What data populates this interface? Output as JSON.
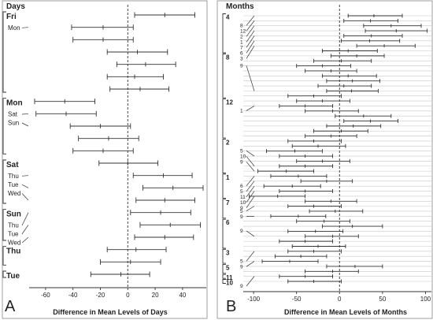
{
  "chart_data": [
    {
      "type": "interval",
      "panel_letter": "A",
      "header": "Days",
      "xlabel": "Difference in Mean Levels of Days",
      "xlim": [
        -72,
        55
      ],
      "xticks": [
        -60,
        -40,
        -20,
        0,
        20,
        40
      ],
      "reference_line": 0,
      "groups": [
        {
          "label": "Fri",
          "rows": [
            0,
            6
          ],
          "sublabels": [
            {
              "text": "Mon",
              "row": 1
            }
          ]
        },
        {
          "label": "Mon",
          "rows": [
            7,
            11
          ],
          "sublabels": [
            {
              "text": "Sat",
              "row": 8
            },
            {
              "text": "Sun",
              "row": 9
            }
          ]
        },
        {
          "label": "Sat",
          "rows": [
            12,
            15
          ],
          "sublabels": [
            {
              "text": "Thu",
              "row": 13
            },
            {
              "text": "Tue",
              "row": 14
            },
            {
              "text": "Wed",
              "row": 15
            }
          ]
        },
        {
          "label": "Sun",
          "rows": [
            16,
            18
          ],
          "sublabels": [
            {
              "text": "Thu",
              "row": 16
            },
            {
              "text": "Tue",
              "row": 17
            },
            {
              "text": "Wed",
              "row": 18
            }
          ]
        },
        {
          "label": "Thu",
          "rows": [
            19,
            20
          ],
          "sublabels": []
        },
        {
          "label": "Tue",
          "rows": [
            21,
            21
          ],
          "sublabels": []
        }
      ],
      "intervals": [
        {
          "lower": 5,
          "center": 27,
          "upper": 49
        },
        {
          "lower": -41,
          "center": -18,
          "upper": 4
        },
        {
          "lower": -40,
          "center": -18,
          "upper": 4
        },
        {
          "lower": -15,
          "center": 7,
          "upper": 29
        },
        {
          "lower": -8,
          "center": 13,
          "upper": 35
        },
        {
          "lower": -15,
          "center": 5,
          "upper": 26
        },
        {
          "lower": -13,
          "center": 9,
          "upper": 30
        },
        {
          "lower": -68,
          "center": -46,
          "upper": -24
        },
        {
          "lower": -67,
          "center": -45,
          "upper": -23
        },
        {
          "lower": -42,
          "center": -20,
          "upper": 2
        },
        {
          "lower": -36,
          "center": -14,
          "upper": 8
        },
        {
          "lower": -40,
          "center": -18,
          "upper": 4
        },
        {
          "lower": -21,
          "center": 0,
          "upper": 22
        },
        {
          "lower": 4,
          "center": 26,
          "upper": 47
        },
        {
          "lower": 11,
          "center": 33,
          "upper": 55
        },
        {
          "lower": 6,
          "center": 27,
          "upper": 49
        },
        {
          "lower": 2,
          "center": 24,
          "upper": 46
        },
        {
          "lower": 9,
          "center": 31,
          "upper": 53
        },
        {
          "lower": 5,
          "center": 27,
          "upper": 48
        },
        {
          "lower": -15,
          "center": 6,
          "upper": 28
        },
        {
          "lower": -20,
          "center": 2,
          "upper": 24
        },
        {
          "lower": -27,
          "center": -5,
          "upper": 16
        }
      ]
    },
    {
      "type": "interval",
      "panel_letter": "B",
      "header": "Months",
      "xlabel": "Difference in Mean Levels of Months",
      "xlim": [
        -112,
        106
      ],
      "xticks": [
        -100,
        -50,
        0,
        50,
        100
      ],
      "reference_line": 0,
      "groups": [
        {
          "label": "4",
          "rows": [
            0,
            7
          ],
          "sublabels": [
            {
              "text": "8",
              "row": 0
            },
            {
              "text": "12",
              "row": 1
            },
            {
              "text": "2",
              "row": 2
            },
            {
              "text": "1",
              "row": 3
            },
            {
              "text": "7",
              "row": 4
            },
            {
              "text": "6",
              "row": 5
            },
            {
              "text": "3",
              "row": 6
            }
          ]
        },
        {
          "label": "8",
          "rows": [
            8,
            16
          ],
          "sublabels": [
            {
              "text": "9",
              "row": 15
            }
          ]
        },
        {
          "label": "12",
          "rows": [
            17,
            24
          ],
          "sublabels": [
            {
              "text": "1",
              "row": 18
            }
          ]
        },
        {
          "label": "2",
          "rows": [
            25,
            31
          ],
          "sublabels": [
            {
              "text": "5",
              "row": 28
            },
            {
              "text": "10",
              "row": 30
            },
            {
              "text": "9",
              "row": 31
            }
          ]
        },
        {
          "label": "1",
          "rows": [
            32,
            36
          ],
          "sublabels": [
            {
              "text": "6",
              "row": 32
            },
            {
              "text": "5",
              "row": 33
            },
            {
              "text": "11",
              "row": 34
            },
            {
              "text": "10",
              "row": 35
            },
            {
              "text": "9",
              "row": 36
            }
          ]
        },
        {
          "label": "7",
          "rows": [
            37,
            40
          ],
          "sublabels": [
            {
              "text": "5",
              "row": 38
            },
            {
              "text": "9",
              "row": 40
            }
          ]
        },
        {
          "label": "6",
          "rows": [
            41,
            46
          ],
          "sublabels": [
            {
              "text": "9",
              "row": 44
            }
          ]
        },
        {
          "label": "3",
          "rows": [
            47,
            49
          ],
          "sublabels": [
            {
              "text": "5",
              "row": 47
            },
            {
              "text": "9",
              "row": 49
            }
          ]
        },
        {
          "label": "5",
          "rows": [
            50,
            51
          ],
          "sublabels": []
        },
        {
          "label": "11",
          "rows": [
            52,
            52
          ],
          "sublabels": [
            {
              "text": "9",
              "row": 52
            }
          ]
        },
        {
          "label": "10",
          "rows": [
            53,
            53
          ],
          "sublabels": []
        }
      ],
      "intervals": [
        {
          "lower": 10,
          "center": 40,
          "upper": 73
        },
        {
          "lower": 5,
          "center": 36,
          "upper": 68
        },
        {
          "lower": 28,
          "center": 60,
          "upper": 95
        },
        {
          "lower": 30,
          "center": 66,
          "upper": 102
        },
        {
          "lower": 5,
          "center": 37,
          "upper": 73
        },
        {
          "lower": 2,
          "center": 35,
          "upper": 70
        },
        {
          "lower": 20,
          "center": 52,
          "upper": 88
        },
        {
          "lower": -20,
          "center": 10,
          "upper": 44
        },
        {
          "lower": -10,
          "center": 20,
          "upper": 52
        },
        {
          "lower": -30,
          "center": 2,
          "upper": 37
        },
        {
          "lower": -50,
          "center": -20,
          "upper": 13
        },
        {
          "lower": -40,
          "center": -10,
          "upper": 20
        },
        {
          "lower": -20,
          "center": 10,
          "upper": 43
        },
        {
          "lower": -15,
          "center": 15,
          "upper": 47
        },
        {
          "lower": -25,
          "center": 5,
          "upper": 37
        },
        {
          "lower": -15,
          "center": 14,
          "upper": 45
        },
        {
          "lower": -60,
          "center": -30,
          "upper": 2
        },
        {
          "lower": -50,
          "center": -20,
          "upper": 12
        },
        {
          "lower": -70,
          "center": -40,
          "upper": -8
        },
        {
          "lower": -40,
          "center": -8,
          "upper": 22
        },
        {
          "lower": -5,
          "center": 28,
          "upper": 60
        },
        {
          "lower": 5,
          "center": 36,
          "upper": 68
        },
        {
          "lower": -15,
          "center": 16,
          "upper": 48
        },
        {
          "lower": -30,
          "center": 2,
          "upper": 33
        },
        {
          "lower": -40,
          "center": -10,
          "upper": 20
        },
        {
          "lower": -60,
          "center": -30,
          "upper": 2
        },
        {
          "lower": -55,
          "center": -25,
          "upper": 7
        },
        {
          "lower": -85,
          "center": -52,
          "upper": -20
        },
        {
          "lower": -70,
          "center": -40,
          "upper": -8
        },
        {
          "lower": -50,
          "center": -20,
          "upper": 12
        },
        {
          "lower": -70,
          "center": -40,
          "upper": -8
        },
        {
          "lower": -95,
          "center": -62,
          "upper": -30
        },
        {
          "lower": -80,
          "center": -48,
          "upper": -15
        },
        {
          "lower": -45,
          "center": -15,
          "upper": 15
        },
        {
          "lower": -88,
          "center": -55,
          "upper": -22
        },
        {
          "lower": -70,
          "center": -40,
          "upper": -8
        },
        {
          "lower": -105,
          "center": -72,
          "upper": -40
        },
        {
          "lower": -40,
          "center": -10,
          "upper": 20
        },
        {
          "lower": -60,
          "center": -30,
          "upper": 2
        },
        {
          "lower": -35,
          "center": -5,
          "upper": 27
        },
        {
          "lower": -80,
          "center": -48,
          "upper": -16
        },
        {
          "lower": -50,
          "center": -18,
          "upper": 12
        },
        {
          "lower": -20,
          "center": 15,
          "upper": 50
        },
        {
          "lower": -60,
          "center": -28,
          "upper": 4
        },
        {
          "lower": -40,
          "center": -8,
          "upper": 22
        },
        {
          "lower": -70,
          "center": -40,
          "upper": -8
        },
        {
          "lower": -55,
          "center": -25,
          "upper": 7
        },
        {
          "lower": -60,
          "center": -30,
          "upper": 2
        },
        {
          "lower": -75,
          "center": -45,
          "upper": -15
        },
        {
          "lower": -90,
          "center": -58,
          "upper": -25
        },
        {
          "lower": -15,
          "center": 18,
          "upper": 50
        },
        {
          "lower": -40,
          "center": -8,
          "upper": 22
        },
        {
          "lower": -70,
          "center": -40,
          "upper": -8
        },
        {
          "lower": -60,
          "center": -30,
          "upper": 2
        }
      ]
    }
  ]
}
